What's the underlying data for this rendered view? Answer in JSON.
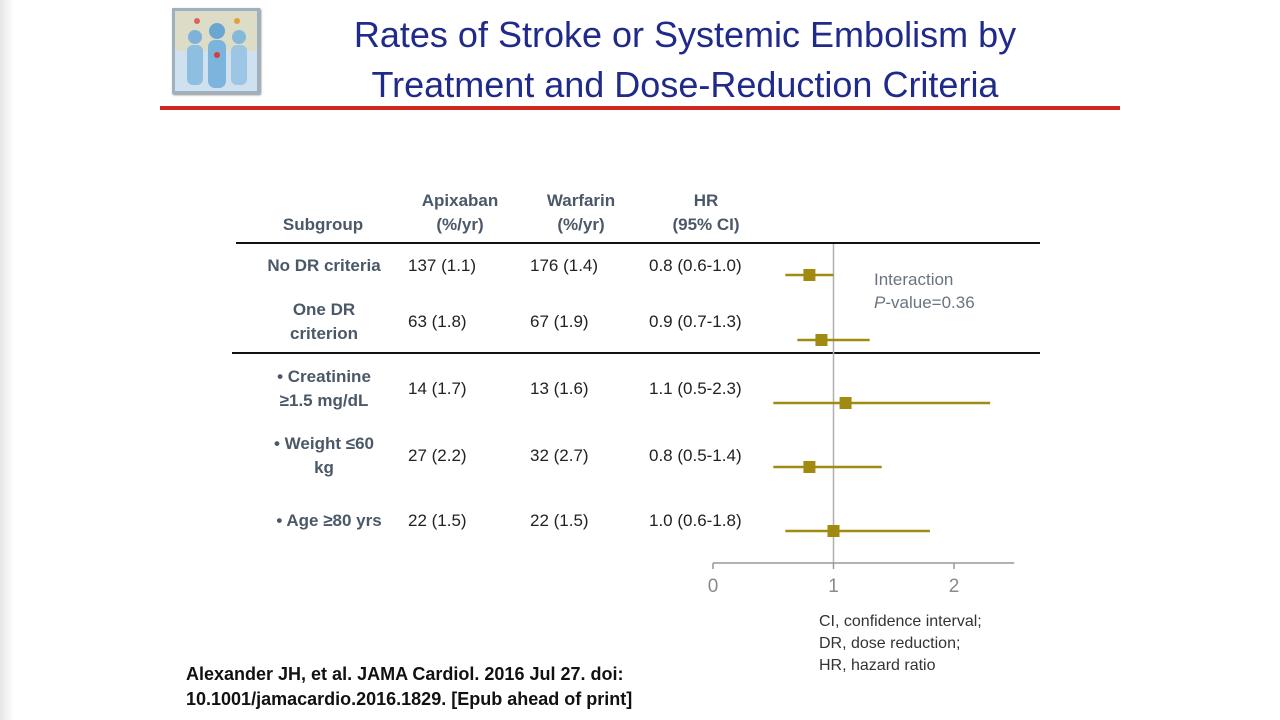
{
  "title": {
    "line1": "Rates of Stroke or Systemic Embolism by",
    "line2": "Treatment and Dose-Reduction Criteria"
  },
  "logo": {
    "icon": "people-illustration-icon"
  },
  "colors": {
    "title": "#1f2a8a",
    "rule": "#d0281e",
    "marker": "#a08a10",
    "axis": "#999999"
  },
  "headers": {
    "subgroup": "Subgroup",
    "apixaban": [
      "Apixaban",
      "(%/yr)"
    ],
    "warfarin": [
      "Warfarin",
      "(%/yr)"
    ],
    "hr": [
      "HR",
      "(95% CI)"
    ]
  },
  "rows": [
    {
      "subgroup": [
        "No DR criteria"
      ],
      "apixaban": "137 (1.1)",
      "warfarin": "176 (1.4)",
      "hr": "0.8 (0.6-1.0)"
    },
    {
      "subgroup": [
        "One DR",
        "criterion"
      ],
      "apixaban": "63 (1.8)",
      "warfarin": "67 (1.9)",
      "hr": "0.9 (0.7-1.3)"
    },
    {
      "subgroup": [
        "• Creatinine",
        "≥1.5 mg/dL"
      ],
      "apixaban": "14 (1.7)",
      "warfarin": "13 (1.6)",
      "hr": "1.1 (0.5-2.3)"
    },
    {
      "subgroup": [
        "• Weight ≤60",
        "kg"
      ],
      "apixaban": "27 (2.2)",
      "warfarin": "32 (2.7)",
      "hr": "0.8 (0.5-1.4)"
    },
    {
      "subgroup": [
        "• Age ≥80 yrs"
      ],
      "apixaban": "22 (1.5)",
      "warfarin": "22 (1.5)",
      "hr": "1.0 (0.6-1.8)"
    }
  ],
  "interaction": {
    "label": "Interaction",
    "p_italic": "P",
    "p_rest": "-value=0.36"
  },
  "notes": [
    "CI, confidence interval;",
    "DR, dose reduction;",
    "HR, hazard ratio"
  ],
  "citation": [
    "Alexander JH, et al. JAMA Cardiol. 2016 Jul 27. doi:",
    "10.1001/jamacardio.2016.1829. [Epub ahead of print]"
  ],
  "chart_data": {
    "type": "forest",
    "xlim": [
      0,
      2.5
    ],
    "xticks": [
      0,
      1,
      2
    ],
    "reference_line": 1,
    "points": [
      {
        "hr": 0.8,
        "lo": 0.6,
        "hi": 1.0
      },
      {
        "hr": 0.9,
        "lo": 0.7,
        "hi": 1.3
      },
      {
        "hr": 1.1,
        "lo": 0.5,
        "hi": 2.3
      },
      {
        "hr": 0.8,
        "lo": 0.5,
        "hi": 1.4
      },
      {
        "hr": 1.0,
        "lo": 0.6,
        "hi": 1.8
      }
    ]
  }
}
